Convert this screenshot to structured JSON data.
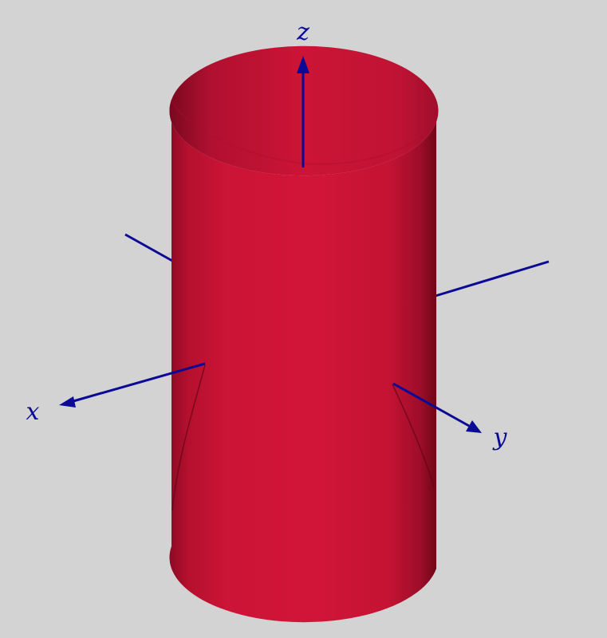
{
  "diagram": {
    "background_color": "#d3d3d3",
    "surface": {
      "shape": "cylinder",
      "color": "#cc1436",
      "shade_color": "#8a0a23"
    },
    "axes": {
      "color": "#0a0a96",
      "x": {
        "label": "x"
      },
      "y": {
        "label": "y"
      },
      "z": {
        "label": "z"
      }
    }
  }
}
